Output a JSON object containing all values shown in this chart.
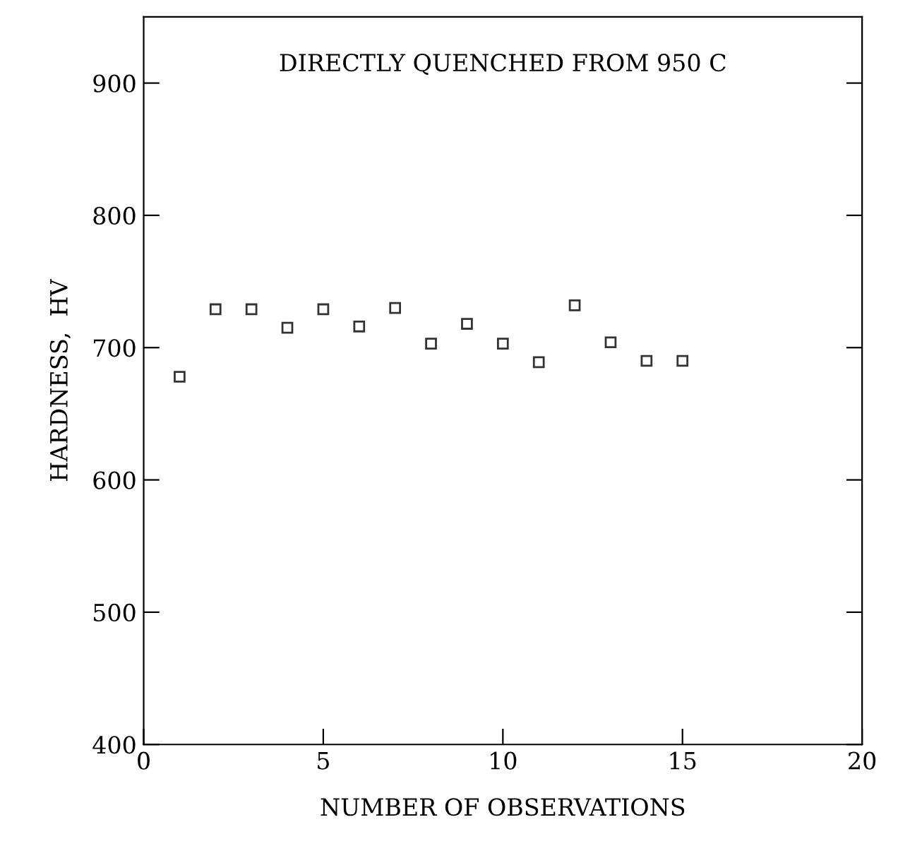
{
  "chart_data": {
    "type": "scatter",
    "xlabel": "NUMBER OF OBSERVATIONS",
    "ylabel": "HARDNESS,  HV",
    "annotations": [
      "DIRECTLY QUENCHED FROM 950 C"
    ],
    "x": [
      1,
      2,
      3,
      4,
      5,
      6,
      7,
      8,
      9,
      10,
      11,
      12,
      13,
      14,
      15
    ],
    "values": [
      678,
      729,
      729,
      715,
      729,
      716,
      730,
      703,
      718,
      703,
      689,
      732,
      704,
      690,
      690
    ],
    "color": "#333333",
    "marker": "square",
    "xlim": [
      0,
      20
    ],
    "ylim": [
      400,
      950
    ],
    "xticks": [
      0,
      5,
      10,
      15,
      20
    ],
    "yticks": [
      400,
      500,
      600,
      700,
      800,
      900
    ],
    "grid": false,
    "legend": false
  }
}
